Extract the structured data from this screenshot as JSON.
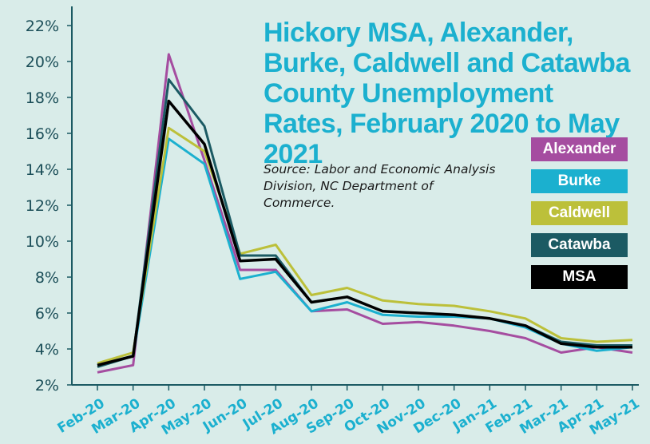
{
  "chart_data": {
    "type": "line",
    "title": "Hickory MSA, Alexander, Burke, Caldwell and Catawba County Unemployment Rates, February 2020 to May 2021",
    "source": "Source: Labor and Economic Analysis Division, NC Department of Commerce.",
    "categories": [
      "Feb-20",
      "Mar-20",
      "Apr-20",
      "May-20",
      "Jun-20",
      "Jul-20",
      "Aug-20",
      "Sep-20",
      "Oct-20",
      "Nov-20",
      "Dec-20",
      "Jan-21",
      "Feb-21",
      "Mar-21",
      "Apr-21",
      "May-21"
    ],
    "y_ticks": [
      "2%",
      "4%",
      "6%",
      "8%",
      "10%",
      "12%",
      "14%",
      "16%",
      "18%",
      "20%",
      "22%"
    ],
    "ylim": [
      2,
      22
    ],
    "legend_position": "right",
    "series": [
      {
        "name": "Alexander",
        "color": "#a54da0",
        "values": [
          2.7,
          3.1,
          20.4,
          14.5,
          8.4,
          8.4,
          6.1,
          6.2,
          5.4,
          5.5,
          5.3,
          5.0,
          4.6,
          3.8,
          4.1,
          3.8
        ]
      },
      {
        "name": "Burke",
        "color": "#1bb0cf",
        "values": [
          3.1,
          3.6,
          15.7,
          14.3,
          7.9,
          8.3,
          6.1,
          6.6,
          5.9,
          5.8,
          5.8,
          5.7,
          5.2,
          4.3,
          3.9,
          4.1
        ]
      },
      {
        "name": "Caldwell",
        "color": "#bcc03a",
        "values": [
          3.2,
          3.8,
          16.3,
          15.0,
          9.3,
          9.8,
          7.0,
          7.4,
          6.7,
          6.5,
          6.4,
          6.1,
          5.7,
          4.6,
          4.4,
          4.5
        ]
      },
      {
        "name": "Catawba",
        "color": "#1b5a63",
        "values": [
          3.0,
          3.6,
          19.0,
          16.4,
          9.2,
          9.2,
          6.6,
          6.9,
          6.1,
          6.0,
          5.9,
          5.7,
          5.3,
          4.4,
          4.2,
          4.2
        ]
      },
      {
        "name": "MSA",
        "color": "#000000",
        "values": [
          3.1,
          3.6,
          17.8,
          15.4,
          8.9,
          9.0,
          6.6,
          6.9,
          6.1,
          6.0,
          5.9,
          5.7,
          5.3,
          4.3,
          4.1,
          4.1
        ]
      }
    ]
  }
}
